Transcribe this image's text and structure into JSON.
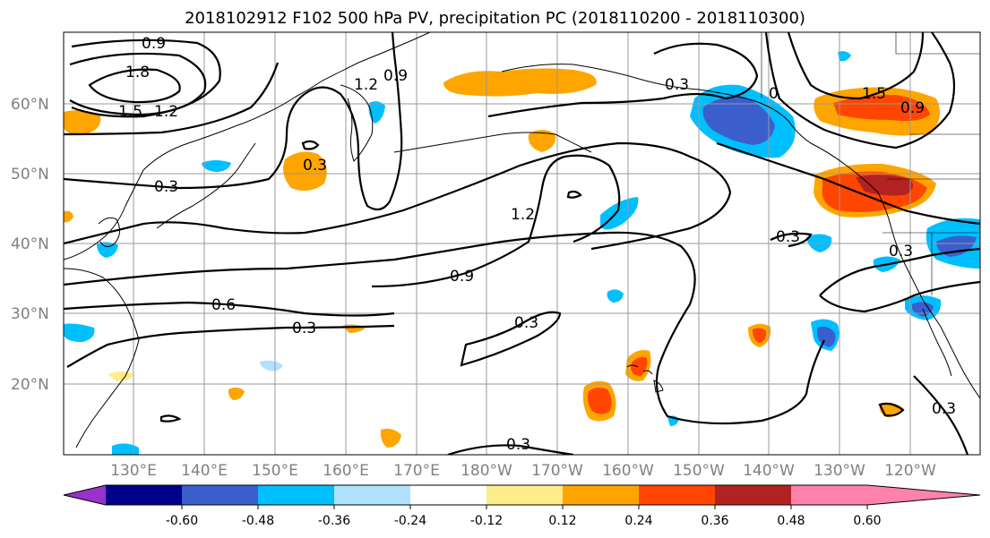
{
  "title": "2018102912 F102 500 hPa PV, precipitation PC (2018110200 - 2018110300)",
  "lat_labels": [
    "60°N",
    "50°N",
    "40°N",
    "30°N",
    "20°N"
  ],
  "lon_labels": [
    "130°E",
    "140°E",
    "150°E",
    "160°E",
    "170°E",
    "180°W",
    "170°W",
    "160°W",
    "150°W",
    "140°W",
    "130°W",
    "120°W"
  ],
  "colorbar": {
    "colors": [
      "#9932CC",
      "#00008B",
      "#3A5FCD",
      "#00BFFF",
      "#B0E2FF",
      "#FFFFFF",
      "#FFEC8B",
      "#FFA500",
      "#FF4500",
      "#B22222",
      "#FF82AB"
    ],
    "tick_labels": [
      "-0.60",
      "-0.48",
      "-0.36",
      "-0.24",
      "-0.12",
      "0.12",
      "0.24",
      "0.36",
      "0.48",
      "0.60"
    ]
  },
  "contour_labels": [
    "0.9",
    "1.8",
    "1.5",
    "1.2",
    "1.2",
    "0.9",
    "0.3",
    "0.3",
    "1.2",
    "0.9",
    "0.6",
    "0.3",
    "0.3",
    "0.3",
    "0.3",
    "0.3",
    "0.3",
    "0",
    "1.5",
    "0.9",
    "0.3"
  ]
}
